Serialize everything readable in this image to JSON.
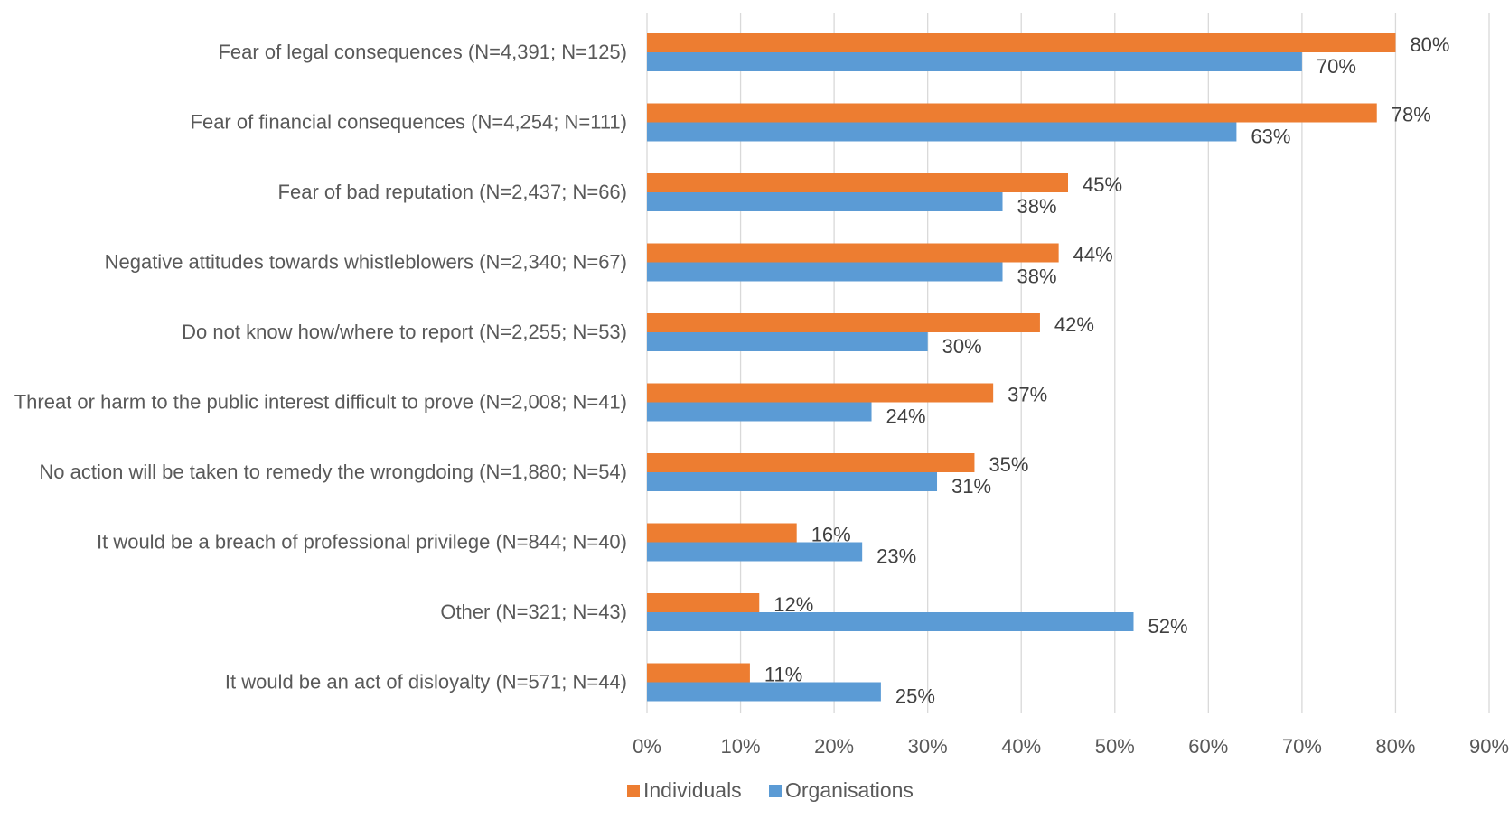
{
  "chart_data": {
    "type": "bar",
    "orientation": "horizontal",
    "categories": [
      "Fear of legal consequences (N=4,391; N=125)",
      "Fear of financial consequences (N=4,254; N=111)",
      "Fear of bad reputation (N=2,437; N=66)",
      "Negative attitudes towards whistleblowers (N=2,340; N=67)",
      "Do not know how/where to report (N=2,255; N=53)",
      "Threat or harm to the public interest difficult to prove (N=2,008; N=41)",
      "No action will be taken to remedy the wrongdoing (N=1,880; N=54)",
      "It would be a breach of professional privilege (N=844; N=40)",
      "Other (N=321; N=43)",
      "It would be an act of disloyalty (N=571; N=44)"
    ],
    "series": [
      {
        "name": "Individuals",
        "color": "#ed7d31",
        "values": [
          80,
          78,
          45,
          44,
          42,
          37,
          35,
          16,
          12,
          11
        ],
        "labels": [
          "80%",
          "78%",
          "45%",
          "44%",
          "42%",
          "37%",
          "35%",
          "16%",
          "12%",
          "11%"
        ]
      },
      {
        "name": "Organisations",
        "color": "#5b9bd5",
        "values": [
          70,
          63,
          38,
          38,
          30,
          24,
          31,
          23,
          52,
          25
        ],
        "labels": [
          "70%",
          "63%",
          "38%",
          "38%",
          "30%",
          "24%",
          "31%",
          "23%",
          "52%",
          "25%"
        ]
      }
    ],
    "xlim": [
      0,
      90
    ],
    "xticks": [
      "0%",
      "10%",
      "20%",
      "30%",
      "40%",
      "50%",
      "60%",
      "70%",
      "80%",
      "90%"
    ],
    "grid": true,
    "legend_position": "bottom"
  }
}
